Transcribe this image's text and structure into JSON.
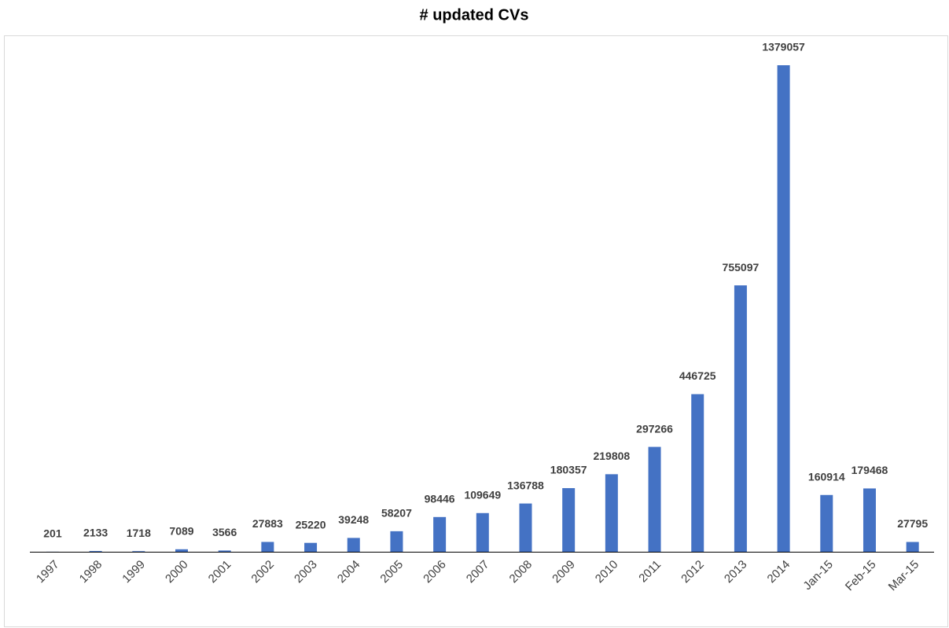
{
  "chart_data": {
    "type": "bar",
    "title": "# updated CVs",
    "categories": [
      "1997",
      "1998",
      "1999",
      "2000",
      "2001",
      "2002",
      "2003",
      "2004",
      "2005",
      "2006",
      "2007",
      "2008",
      "2009",
      "2010",
      "2011",
      "2012",
      "2013",
      "2014",
      "Jan-15",
      "Feb-15",
      "Mar-15"
    ],
    "values": [
      201,
      2133,
      1718,
      7089,
      3566,
      27883,
      25220,
      39248,
      58207,
      98446,
      109649,
      136788,
      180357,
      219808,
      297266,
      446725,
      755097,
      1379057,
      160914,
      179468,
      27795
    ],
    "color": "#4472c4"
  }
}
